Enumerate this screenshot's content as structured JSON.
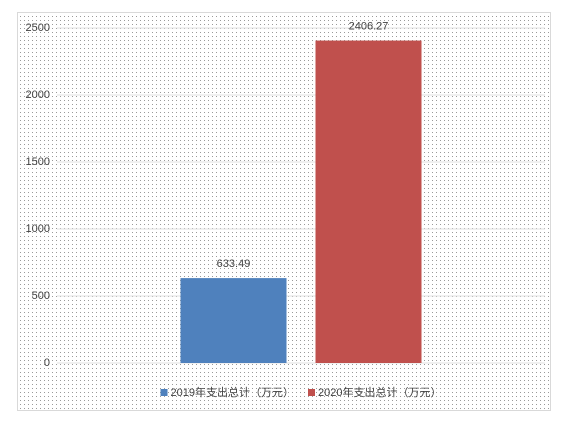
{
  "chart_data": {
    "type": "bar",
    "categories": [
      null
    ],
    "series": [
      {
        "name": "2019年支出总计（万元）",
        "color": "#4f81bd",
        "values": [
          633.49
        ]
      },
      {
        "name": "2020年支出总计（万元）",
        "color": "#c0504d",
        "values": [
          2406.27
        ]
      }
    ],
    "ylim": [
      0,
      2500
    ],
    "yticks": [
      0,
      500,
      1000,
      1500,
      2000,
      2500
    ],
    "grid": true,
    "legend": "bottom"
  }
}
